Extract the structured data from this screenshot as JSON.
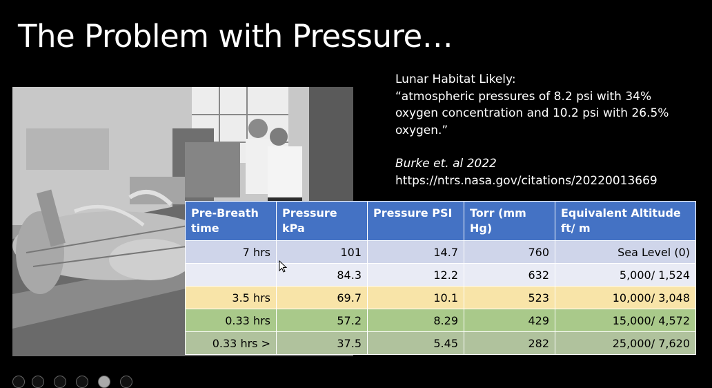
{
  "slide": {
    "title": "The Problem with Pressure…"
  },
  "quote": {
    "heading": "Lunar Habitat Likely:",
    "text": "“atmospheric pressures of 8.2 psi with 34% oxygen concentration and 10.2 psi with 26.5% oxygen.”",
    "citation": "Burke et. al 2022",
    "url": "https://ntrs.nasa.gov/citations/20220013669"
  },
  "table": {
    "headers": [
      "Pre-Breath time",
      "Pressure kPa",
      "Pressure PSI",
      "Torr (mm Hg)",
      "Equivalent Altitude ft/ m"
    ],
    "rows": [
      [
        "7 hrs",
        "101",
        "14.7",
        "760",
        "Sea Level (0)"
      ],
      [
        "",
        "84.3",
        "12.2",
        "632",
        "5,000/ 1,524"
      ],
      [
        "3.5 hrs",
        "69.7",
        "10.1",
        "523",
        "10,000/ 3,048"
      ],
      [
        "0.33 hrs",
        "57.2",
        "8.29",
        "429",
        "15,000/ 4,572"
      ],
      [
        "0.33 hrs >",
        "37.5",
        "5.45",
        "282",
        "25,000/ 7,620"
      ]
    ],
    "row_colors": [
      "#cfd5ea",
      "#e9ebf5",
      "#f8e4a8",
      "#a9c98a",
      "#b0c29d"
    ],
    "header_color": "#4472c4"
  }
}
